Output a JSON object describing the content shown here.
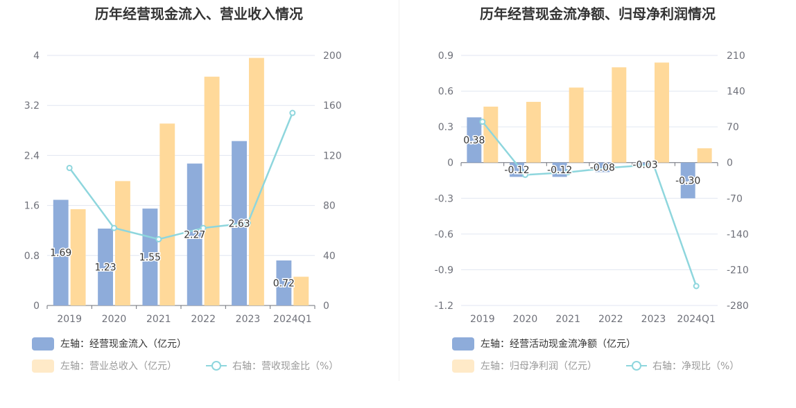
{
  "colors": {
    "bar1": "#8eacda",
    "bar2": "#ffd99a",
    "line": "#8ed6dd",
    "grid": "#e0e6f1",
    "axis": "#6e7079"
  },
  "chart_data": [
    {
      "type": "bar",
      "title": "历年经营现金流入、营业收入情况",
      "categories": [
        "2019",
        "2020",
        "2021",
        "2022",
        "2023",
        "2024Q1"
      ],
      "left_axis": {
        "min": 0,
        "max": 4,
        "ticks": [
          "0",
          "0.8",
          "1.6",
          "2.4",
          "3.2",
          "4"
        ]
      },
      "right_axis": {
        "min": 0,
        "max": 200,
        "ticks": [
          "0",
          "40",
          "80",
          "120",
          "160",
          "200"
        ]
      },
      "series": [
        {
          "name": "左轴：经营现金流入（亿元）",
          "type": "bar",
          "axis": "left",
          "values": [
            1.69,
            1.23,
            1.55,
            2.27,
            2.63,
            0.72
          ],
          "labels": [
            "1.69",
            "1.23",
            "1.55",
            "2.27",
            "2.63",
            "0.72"
          ]
        },
        {
          "name": "左轴：营业总收入（亿元）",
          "type": "bar",
          "axis": "left",
          "values": [
            1.54,
            1.99,
            2.91,
            3.66,
            3.96,
            0.46
          ]
        },
        {
          "name": "右轴：营收现金比（%）",
          "type": "line",
          "axis": "right",
          "values": [
            110,
            62,
            53,
            62,
            66,
            154
          ]
        }
      ],
      "grid": true,
      "legend_position": "bottom-left"
    },
    {
      "type": "bar",
      "title": "历年经营现金流净额、归母净利润情况",
      "categories": [
        "2019",
        "2020",
        "2021",
        "2022",
        "2023",
        "2024Q1"
      ],
      "left_axis": {
        "min": -1.2,
        "max": 0.9,
        "ticks": [
          "-1.2",
          "-0.9",
          "-0.6",
          "-0.3",
          "0",
          "0.3",
          "0.6",
          "0.9"
        ]
      },
      "right_axis": {
        "min": -280,
        "max": 210,
        "ticks": [
          "-280",
          "-210",
          "-140",
          "-70",
          "0",
          "70",
          "140",
          "210"
        ]
      },
      "series": [
        {
          "name": "左轴：经营活动现金流净额（亿元）",
          "type": "bar",
          "axis": "left",
          "values": [
            0.38,
            -0.12,
            -0.12,
            -0.08,
            -0.03,
            -0.3
          ],
          "labels": [
            "0.38",
            "-0.12",
            "-0.12",
            "-0.08",
            "-0.03",
            "-0.30"
          ]
        },
        {
          "name": "左轴：归母净利润（亿元）",
          "type": "bar",
          "axis": "left",
          "values": [
            0.47,
            0.51,
            0.63,
            0.8,
            0.84,
            0.12
          ]
        },
        {
          "name": "右轴：净现比（%）",
          "type": "line",
          "axis": "right",
          "values": [
            80,
            -24,
            -19,
            -10,
            -4,
            -242
          ]
        }
      ],
      "grid": true,
      "legend_position": "bottom-left"
    }
  ]
}
